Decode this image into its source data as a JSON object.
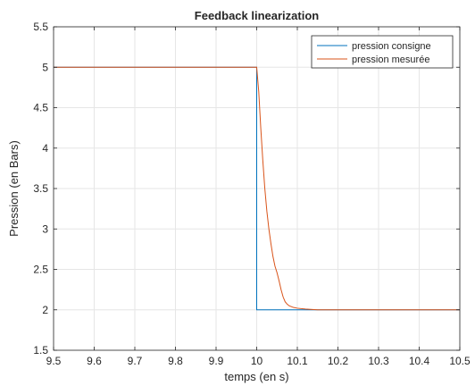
{
  "chart_data": {
    "type": "line",
    "title": "Feedback linearization",
    "xlabel": "temps (en s)",
    "ylabel": "Pression (en Bars)",
    "xlim": [
      9.5,
      10.5
    ],
    "ylim": [
      1.5,
      5.5
    ],
    "xticks": [
      "9.5",
      "9.6",
      "9.7",
      "9.8",
      "9.9",
      "10",
      "10.1",
      "10.2",
      "10.3",
      "10.4",
      "10.5"
    ],
    "yticks": [
      "1.5",
      "2",
      "2.5",
      "3",
      "3.5",
      "4",
      "4.5",
      "5",
      "5.5"
    ],
    "grid": true,
    "legend_position": "top-right",
    "series": [
      {
        "name": "pression consigne",
        "color": "#0072BD",
        "x": [
          9.5,
          10.0,
          10.0,
          10.5
        ],
        "y": [
          5.0,
          5.0,
          2.0,
          2.0
        ]
      },
      {
        "name": "pression mesurée",
        "color": "#D95319",
        "x": [
          9.5,
          9.6,
          9.7,
          9.8,
          9.9,
          9.99,
          10.0,
          10.005,
          10.01,
          10.015,
          10.02,
          10.025,
          10.03,
          10.035,
          10.04,
          10.045,
          10.05,
          10.055,
          10.06,
          10.065,
          10.07,
          10.075,
          10.08,
          10.09,
          10.1,
          10.12,
          10.15,
          10.2,
          10.3,
          10.4,
          10.5
        ],
        "y": [
          5.0,
          5.0,
          5.0,
          5.0,
          5.0,
          5.0,
          5.0,
          4.7,
          4.25,
          3.85,
          3.5,
          3.22,
          3.0,
          2.82,
          2.66,
          2.54,
          2.46,
          2.36,
          2.25,
          2.16,
          2.1,
          2.07,
          2.05,
          2.03,
          2.02,
          2.01,
          2.0,
          2.0,
          2.0,
          2.0,
          2.0
        ]
      }
    ]
  }
}
